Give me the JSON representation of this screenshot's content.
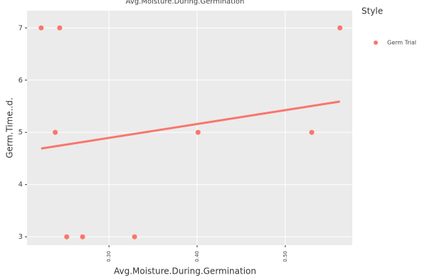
{
  "chart_data": {
    "type": "scatter",
    "title": "Avg.Moisture.During.Germination",
    "x_label": "Avg.Moisture.During.Germination",
    "y_label": "Germ.Time..d.",
    "legend_title": "Style",
    "legend_position": "right",
    "grid": true,
    "xlim": [
      0.207,
      0.576
    ],
    "ylim": [
      2.84,
      7.33
    ],
    "xticks": [
      {
        "value": 0.3,
        "label": "0.30"
      },
      {
        "value": 0.4,
        "label": "0.40"
      },
      {
        "value": 0.5,
        "label": "0.50"
      }
    ],
    "yticks": [
      3,
      4,
      5,
      6,
      7
    ],
    "series": [
      {
        "name": "Germ Trial",
        "color": "#f8766d",
        "x": [
          0.223,
          0.244,
          0.239,
          0.252,
          0.27,
          0.329,
          0.401,
          0.53,
          0.562
        ],
        "values": [
          7,
          7,
          5,
          3,
          3,
          3,
          5,
          5,
          7
        ]
      }
    ],
    "trend": {
      "color": "#f8766d",
      "x": [
        0.223,
        0.562
      ],
      "values": [
        4.69,
        5.59
      ]
    }
  }
}
